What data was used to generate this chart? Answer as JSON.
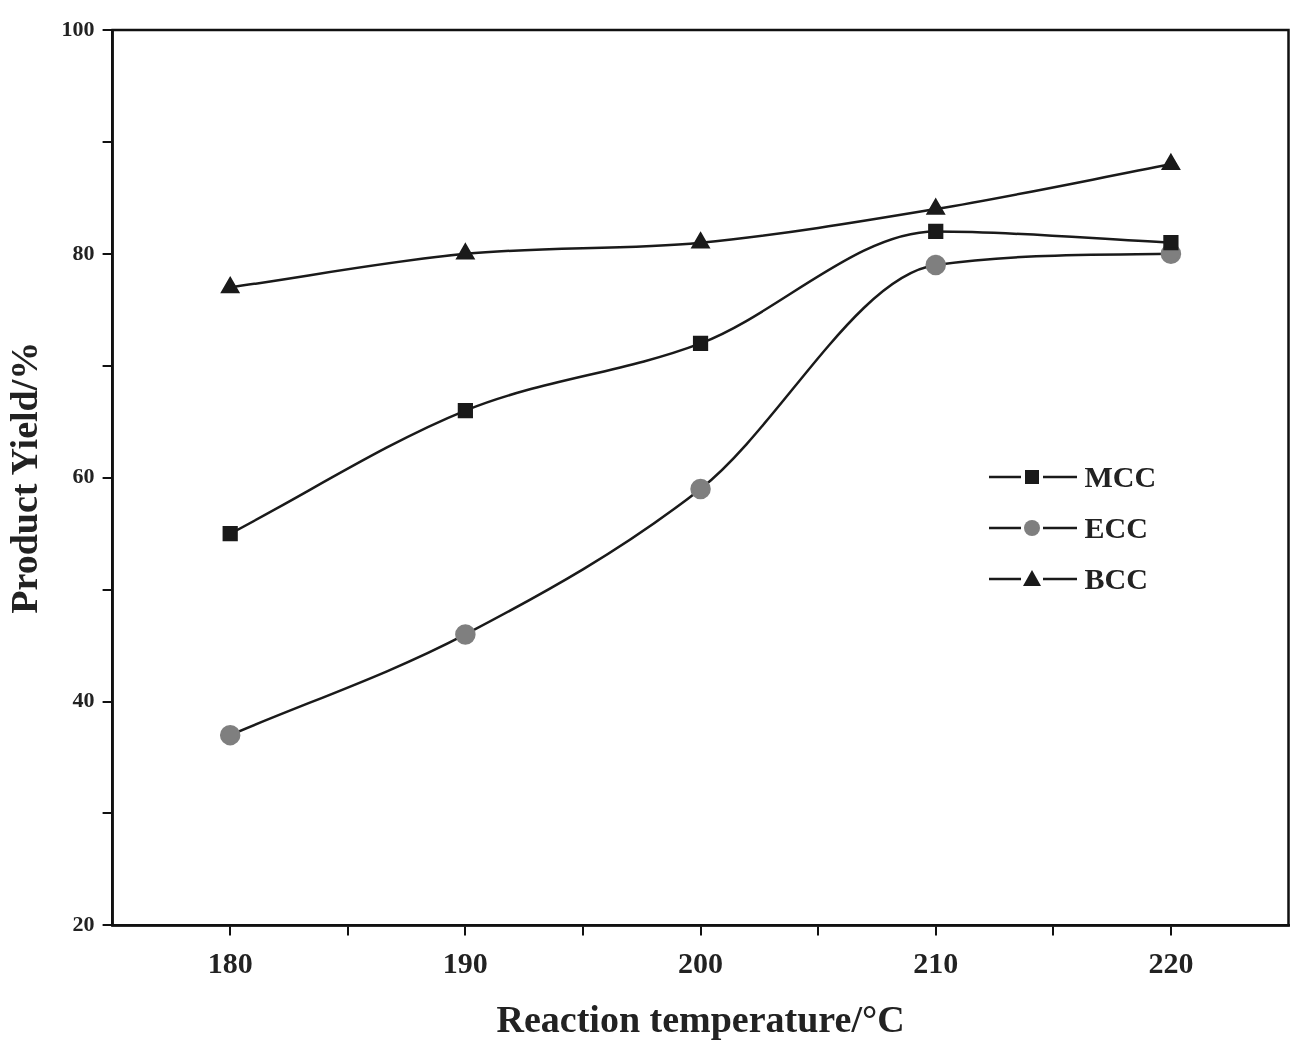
{
  "chart_data": {
    "type": "line",
    "xlabel": "Reaction temperature/°C",
    "ylabel": "Product Yield/%",
    "x": [
      180,
      190,
      200,
      210,
      220
    ],
    "series": [
      {
        "name": "MCC",
        "color": "#1a1a1a",
        "marker": "square",
        "values": [
          55,
          66,
          72,
          82,
          81
        ]
      },
      {
        "name": "ECC",
        "color": "#7f7f7f",
        "marker": "circle",
        "values": [
          37,
          46,
          59,
          79,
          80
        ]
      },
      {
        "name": "BCC",
        "color": "#1a1a1a",
        "marker": "triangle",
        "values": [
          77,
          80,
          81,
          84,
          88
        ]
      }
    ],
    "xlim": [
      175,
      225
    ],
    "xticks": [
      180,
      {
        "value": 185,
        "label": null
      },
      190,
      {
        "value": 195,
        "label": null
      },
      200,
      {
        "value": 205,
        "label": null
      },
      210,
      {
        "value": 215,
        "label": null
      },
      220
    ],
    "ylim": [
      20,
      100
    ],
    "yticks": [
      20,
      {
        "value": 30,
        "label": null
      },
      40,
      {
        "value": 50,
        "label": null
      },
      60,
      {
        "value": 70,
        "label": null
      },
      80,
      {
        "value": 90,
        "label": null
      },
      100
    ],
    "grid": false,
    "legend": "center right",
    "line_style": "solid"
  }
}
